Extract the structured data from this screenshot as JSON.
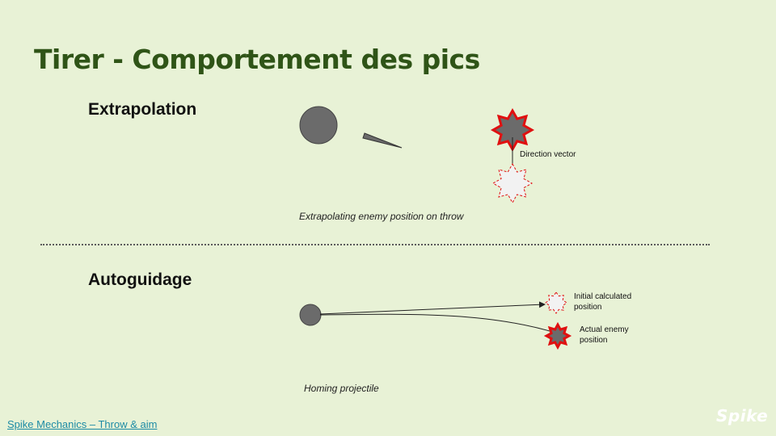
{
  "title": "Tirer - Comportement des pics",
  "sections": {
    "extrapolation": {
      "heading": "Extrapolation",
      "direction_label": "Direction vector",
      "caption": "Extrapolating enemy position on throw"
    },
    "homing": {
      "heading": "Autoguidage",
      "initial_label": "Initial calculated position",
      "actual_label": "Actual enemy position",
      "caption": "Homing projectile"
    }
  },
  "footer": {
    "link_text": "Spike Mechanics – Throw & aim"
  },
  "logo": {
    "text": "Spike"
  },
  "colors": {
    "background": "#e8f2d6",
    "title": "#2f5417",
    "enemy_fill": "#6b6b6b",
    "enemy_outline": "#e01010",
    "link": "#1d8ba5"
  }
}
